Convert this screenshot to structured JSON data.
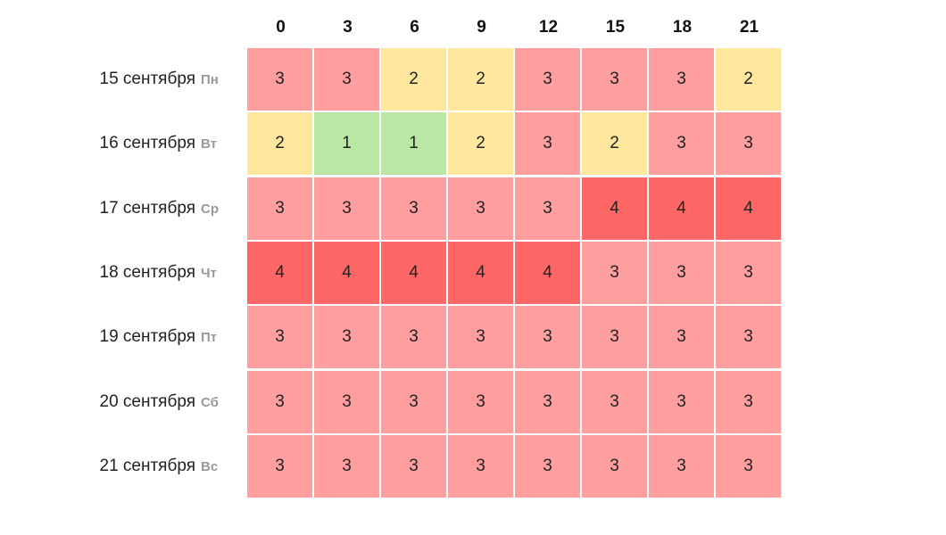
{
  "chart_data": {
    "type": "heatmap",
    "x": [
      "0",
      "3",
      "6",
      "9",
      "12",
      "15",
      "18",
      "21"
    ],
    "rows": [
      {
        "date": "15 сентября",
        "dow": "Пн",
        "values": [
          3,
          3,
          2,
          2,
          3,
          3,
          3,
          2
        ]
      },
      {
        "date": "16 сентября",
        "dow": "Вт",
        "values": [
          2,
          1,
          1,
          2,
          3,
          2,
          3,
          3
        ]
      },
      {
        "date": "17 сентября",
        "dow": "Ср",
        "values": [
          3,
          3,
          3,
          3,
          3,
          4,
          4,
          4
        ]
      },
      {
        "date": "18 сентября",
        "dow": "Чт",
        "values": [
          4,
          4,
          4,
          4,
          4,
          3,
          3,
          3
        ]
      },
      {
        "date": "19 сентября",
        "dow": "Пт",
        "values": [
          3,
          3,
          3,
          3,
          3,
          3,
          3,
          3
        ]
      },
      {
        "date": "20 сентября",
        "dow": "Сб",
        "values": [
          3,
          3,
          3,
          3,
          3,
          3,
          3,
          3
        ]
      },
      {
        "date": "21 сентября",
        "dow": "Вс",
        "values": [
          3,
          3,
          3,
          3,
          3,
          3,
          3,
          3
        ]
      }
    ],
    "colors": {
      "1": "#b8e8a4",
      "2": "#ffe89e",
      "3": "#ff9e9e",
      "4": "#ff6666"
    }
  }
}
